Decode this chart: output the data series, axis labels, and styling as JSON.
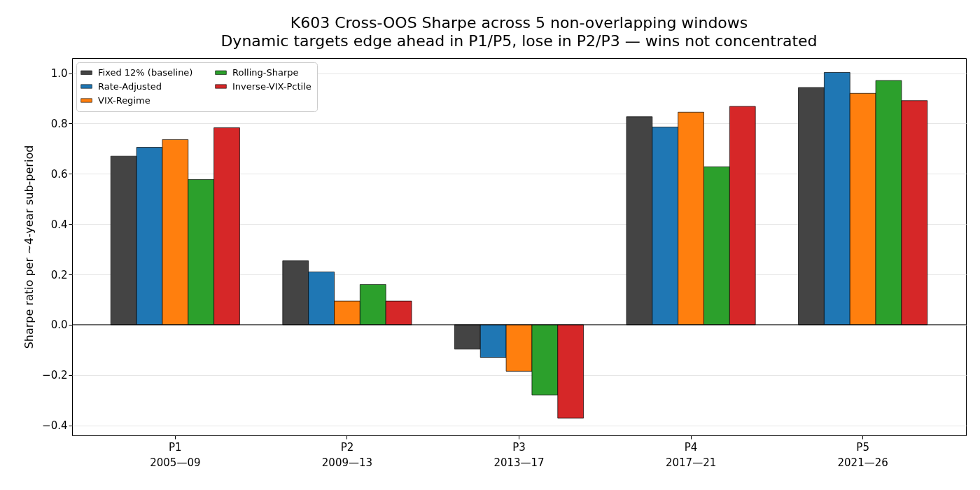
{
  "chart_data": {
    "type": "bar",
    "title": "K603 Cross-OOS Sharpe across 5 non-overlapping windows",
    "subtitle": "Dynamic targets edge ahead in P1/P5, lose in P2/P3 — wins not concentrated",
    "ylabel": "Sharpe ratio per ~4-year sub-period",
    "categories": [
      "P1\n2005—09",
      "P2\n2009—13",
      "P3\n2013—17",
      "P4\n2017—21",
      "P5\n2021—26"
    ],
    "series": [
      {
        "name": "Fixed 12% (baseline)",
        "color": "#444444",
        "values": [
          0.67,
          0.254,
          -0.097,
          0.827,
          0.943
        ]
      },
      {
        "name": "Rate-Adjusted",
        "color": "#1f77b4",
        "values": [
          0.705,
          0.21,
          -0.13,
          0.786,
          1.003
        ]
      },
      {
        "name": "VIX-Regime",
        "color": "#ff7f0e",
        "values": [
          0.736,
          0.094,
          -0.185,
          0.845,
          0.92
        ]
      },
      {
        "name": "Rolling-Sharpe",
        "color": "#2ca02c",
        "values": [
          0.577,
          0.16,
          -0.279,
          0.628,
          0.971
        ]
      },
      {
        "name": "Inverse-VIX-Pctile",
        "color": "#d62728",
        "values": [
          0.783,
          0.094,
          -0.371,
          0.868,
          0.891
        ]
      }
    ],
    "ylim": [
      -0.44,
      1.06
    ],
    "yticks": [
      {
        "value": -0.4,
        "label": "−0.4"
      },
      {
        "value": -0.2,
        "label": "−0.2"
      },
      {
        "value": 0,
        "label": "0.0"
      },
      0.2,
      0.4,
      0.6,
      0.8,
      {
        "value": 1,
        "label": "1.0"
      }
    ],
    "grid": "y",
    "legend": "top left",
    "ref_lines": [
      {
        "axis": "y",
        "value": 0,
        "color": "#000000"
      }
    ]
  }
}
